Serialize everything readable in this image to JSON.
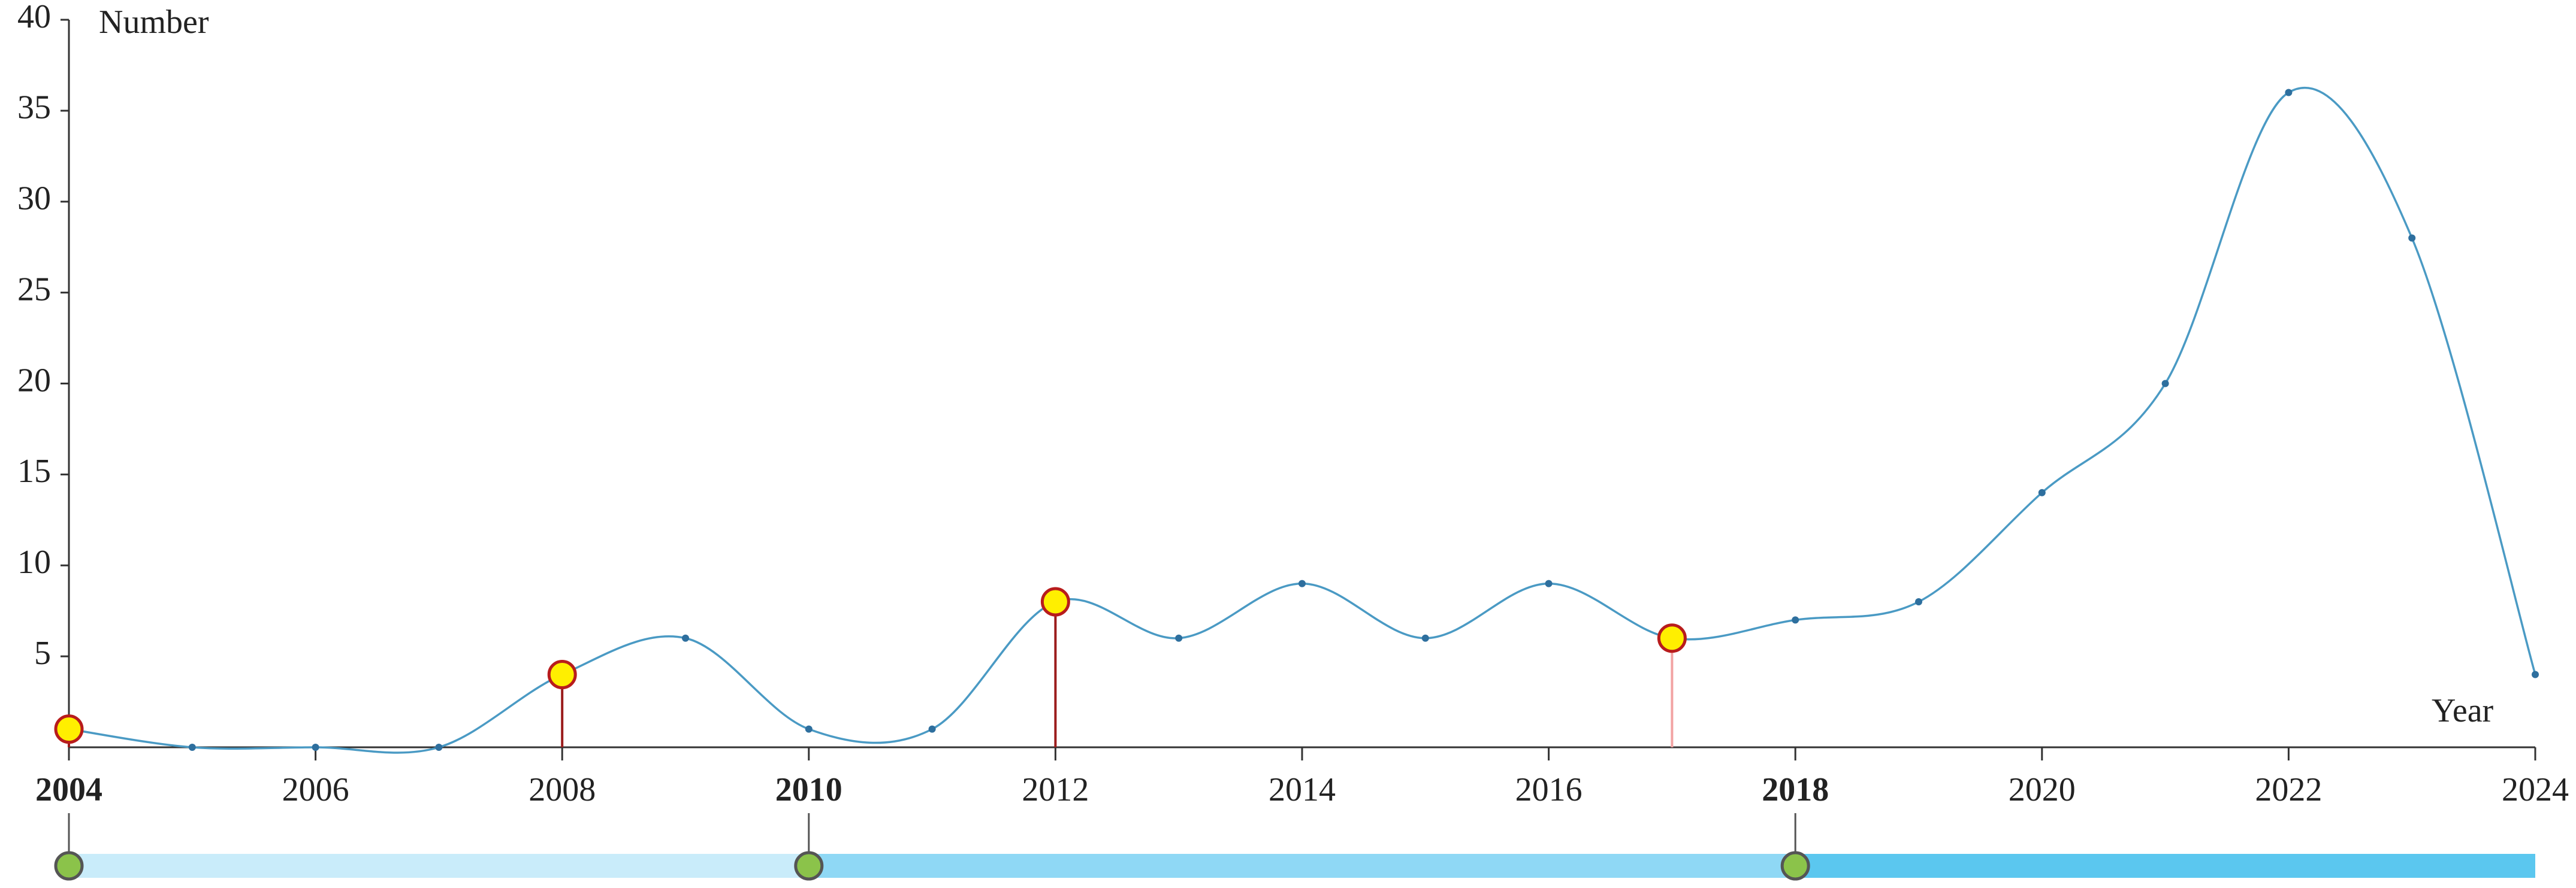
{
  "chart_data": {
    "type": "line",
    "x_label": "Year",
    "y_label": "Number",
    "x": [
      2004,
      2005,
      2006,
      2007,
      2008,
      2009,
      2010,
      2011,
      2012,
      2013,
      2014,
      2015,
      2016,
      2017,
      2018,
      2019,
      2020,
      2021,
      2022,
      2023,
      2024
    ],
    "values": [
      1,
      0,
      0,
      0,
      4,
      6,
      1,
      1,
      8,
      6,
      9,
      6,
      9,
      6,
      7,
      8,
      14,
      20,
      36,
      28,
      4
    ],
    "color": "#4a9ac4",
    "point_color": "#2e6f9e",
    "xlim": [
      2004,
      2024
    ],
    "xticks": [
      2004,
      2006,
      2008,
      2010,
      2012,
      2014,
      2016,
      2018,
      2020,
      2022,
      2024
    ],
    "ylim": [
      0,
      40
    ],
    "yticks": [
      5,
      10,
      15,
      20,
      25,
      30,
      35,
      40
    ],
    "highlights": [
      {
        "x": 2004,
        "color": "#9b1c1c"
      },
      {
        "x": 2008,
        "color": "#9b1c1c"
      },
      {
        "x": 2012,
        "color": "#9b1c1c"
      },
      {
        "x": 2017,
        "color": "#f2a3a3"
      }
    ],
    "periods": [
      {
        "start": 2004,
        "color": "#c9ecfa"
      },
      {
        "start": 2010,
        "color": "#8fd8f5"
      },
      {
        "start": 2018,
        "color": "#5bc7ef"
      }
    ]
  }
}
